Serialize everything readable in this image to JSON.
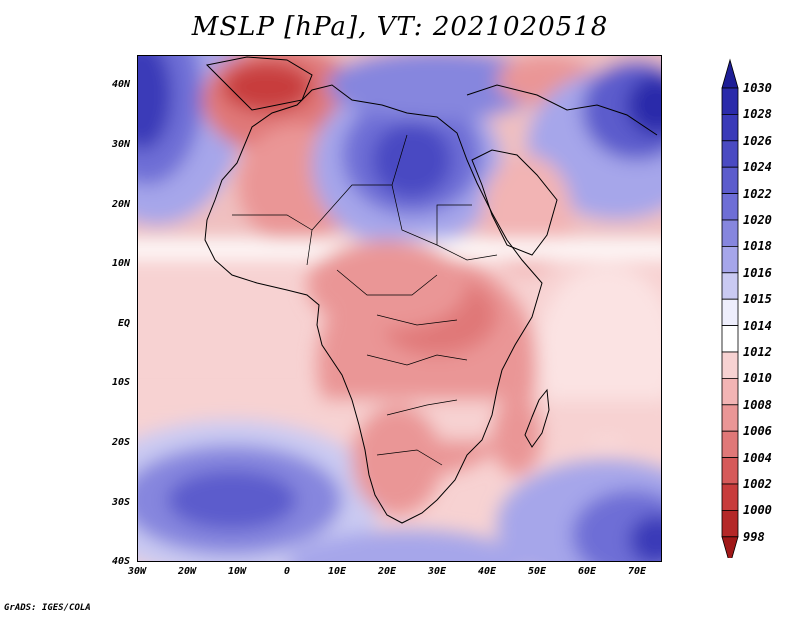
{
  "title": "MSLP [hPa], VT: 2021020518",
  "credit": "GrADS: IGES/COLA",
  "latitude_labels": [
    "40N",
    "30N",
    "20N",
    "10N",
    "EQ",
    "10S",
    "20S",
    "30S",
    "40S"
  ],
  "longitude_labels": [
    "30W",
    "20W",
    "10W",
    "0",
    "10E",
    "20E",
    "30E",
    "40E",
    "50E",
    "60E",
    "70E"
  ],
  "colorbar": {
    "levels": [
      "1030",
      "1028",
      "1026",
      "1024",
      "1022",
      "1020",
      "1018",
      "1016",
      "1015",
      "1014",
      "1012",
      "1010",
      "1008",
      "1006",
      "1004",
      "1002",
      "1000",
      "998"
    ],
    "colors": [
      "#1e1e96",
      "#2b2baa",
      "#3a3ab8",
      "#4a4ac2",
      "#5c5ccc",
      "#6e6ed6",
      "#8686de",
      "#a6a6ea",
      "#cacaf2",
      "#eeeefc",
      "#ffffff",
      "#f7d2d2",
      "#f2b4b4",
      "#ea9696",
      "#e07878",
      "#d65a5a",
      "#c83c3c",
      "#b42828",
      "#a01818"
    ]
  }
}
